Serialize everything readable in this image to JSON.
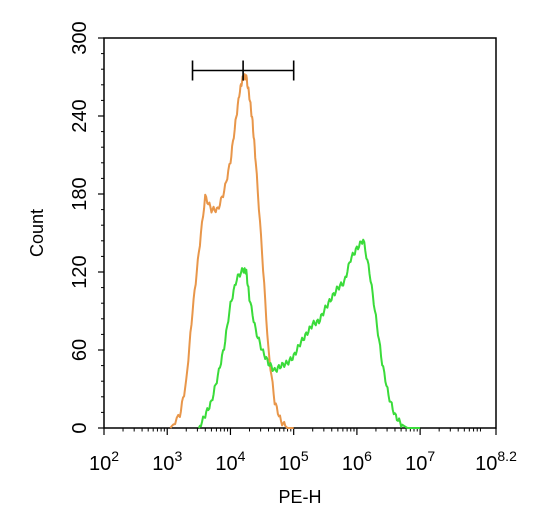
{
  "chart_data": {
    "type": "line",
    "xlabel": "PE-H",
    "ylabel": "Count",
    "x_scale": "log10",
    "xlim": [
      2,
      8.2
    ],
    "ylim": [
      0,
      300
    ],
    "y_ticks": [
      0,
      60,
      120,
      180,
      240,
      300
    ],
    "y_tick_labels": [
      "0",
      "60",
      "120",
      "180",
      "240",
      "300"
    ],
    "x_tick_labels": [
      {
        "base": "10",
        "exp": "2"
      },
      {
        "base": "10",
        "exp": "3"
      },
      {
        "base": "10",
        "exp": "4"
      },
      {
        "base": "10",
        "exp": "5"
      },
      {
        "base": "10",
        "exp": "6"
      },
      {
        "base": "10",
        "exp": "7"
      },
      {
        "base": "10",
        "exp": "8.2"
      }
    ],
    "gate": {
      "x_from": 3.4,
      "x_mid": 4.2,
      "x_to": 5.0,
      "y": 275
    },
    "series": [
      {
        "color": "#E8964A",
        "x": [
          3.05,
          3.2,
          3.3,
          3.4,
          3.5,
          3.6,
          3.7,
          3.8,
          3.9,
          4.0,
          4.08,
          4.15,
          4.2,
          4.25,
          4.3,
          4.35,
          4.4,
          4.5,
          4.6,
          4.7,
          4.8,
          4.9,
          5.0
        ],
        "y": [
          0,
          10,
          35,
          90,
          135,
          178,
          168,
          168,
          182,
          205,
          235,
          260,
          270,
          270,
          255,
          235,
          205,
          135,
          60,
          20,
          5,
          0,
          0
        ]
      },
      {
        "color": "#3ADB3A",
        "x": [
          3.5,
          3.6,
          3.7,
          3.8,
          3.9,
          4.0,
          4.1,
          4.2,
          4.25,
          4.3,
          4.4,
          4.5,
          4.6,
          4.7,
          4.8,
          4.9,
          5.0,
          5.1,
          5.2,
          5.3,
          5.4,
          5.5,
          5.6,
          5.7,
          5.8,
          5.9,
          6.0,
          6.1,
          6.2,
          6.3,
          6.4,
          6.5,
          6.6,
          6.7,
          6.8,
          6.9,
          7.0
        ],
        "y": [
          0,
          10,
          20,
          40,
          62,
          95,
          115,
          122,
          120,
          100,
          75,
          60,
          50,
          44,
          48,
          50,
          55,
          65,
          72,
          80,
          82,
          92,
          100,
          108,
          112,
          130,
          138,
          145,
          120,
          85,
          50,
          25,
          10,
          3,
          0,
          0,
          0
        ]
      }
    ]
  }
}
